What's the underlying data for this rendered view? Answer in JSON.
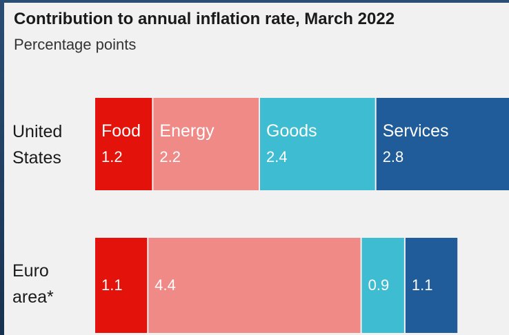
{
  "chart_data": {
    "type": "bar",
    "orientation": "horizontal",
    "stacked": true,
    "title": "Contribution to annual inflation rate, March 2022",
    "subtitle": "Percentage points",
    "categories": [
      "United States",
      "Euro area*"
    ],
    "category_lines": [
      [
        "United",
        "States"
      ],
      [
        "Euro",
        "area*"
      ]
    ],
    "series": [
      {
        "name": "Food",
        "color": "#e3120b",
        "values": [
          1.2,
          1.1
        ],
        "labels": [
          "1.2",
          "1.1"
        ]
      },
      {
        "name": "Energy",
        "color": "#ef8a87",
        "values": [
          2.2,
          4.4
        ],
        "labels": [
          "2.2",
          "4.4"
        ]
      },
      {
        "name": "Goods",
        "color": "#3ebcd2",
        "values": [
          2.4,
          0.9
        ],
        "labels": [
          "2.4",
          "0.9"
        ]
      },
      {
        "name": "Services",
        "color": "#1f5c99",
        "values": [
          2.8,
          1.1
        ],
        "labels": [
          "2.8",
          "1.1"
        ]
      }
    ],
    "series_names_shown_on_row": 0,
    "grid": false,
    "legend": "none"
  }
}
